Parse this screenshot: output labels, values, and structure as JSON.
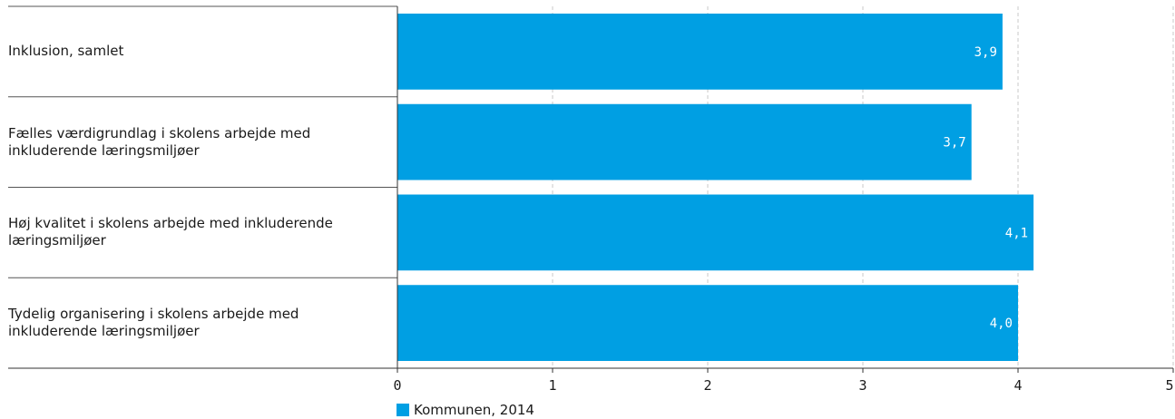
{
  "chart_data": {
    "type": "bar",
    "orientation": "horizontal",
    "title": "",
    "categories": [
      "Inklusion, samlet",
      "Fælles værdigrundlag i skolens arbejde med inkluderende læringsmiljøer",
      "Høj kvalitet i skolens arbejde med inkluderende læringsmiljøer",
      "Tydelig organisering i skolens arbejde med inkluderende læringsmiljøer"
    ],
    "category_lines": [
      [
        "Inklusion, samlet"
      ],
      [
        "Fælles værdigrundlag i skolens arbejde med",
        "inkluderende læringsmiljøer"
      ],
      [
        "Høj kvalitet i skolens arbejde med inkluderende",
        "læringsmiljøer"
      ],
      [
        "Tydelig organisering i skolens arbejde med",
        "inkluderende læringsmiljøer"
      ]
    ],
    "series": [
      {
        "name": "Kommunen, 2014",
        "values": [
          3.9,
          3.7,
          4.1,
          4.0
        ],
        "labels": [
          "3,9",
          "3,7",
          "4,1",
          "4,0"
        ]
      }
    ],
    "xlim": [
      0,
      5
    ],
    "xticks": [
      "0",
      "1",
      "2",
      "3",
      "4",
      "5"
    ],
    "grid": "vertical dashed",
    "legend_position": "bottom",
    "colors": {
      "bar": "#009fe3",
      "label": "#ffffff",
      "grid": "#c8c8c8",
      "axis": "#333333"
    }
  }
}
